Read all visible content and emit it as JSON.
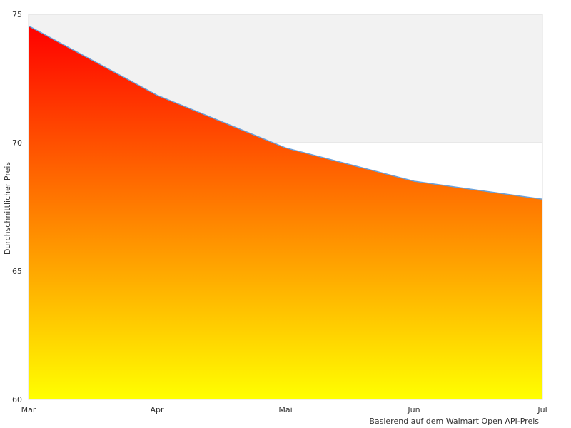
{
  "chart_data": {
    "type": "area",
    "categories": [
      "Mar",
      "Apr",
      "Mai",
      "Jun",
      "Jul"
    ],
    "series": [
      {
        "values": [
          74.55,
          71.85,
          69.8,
          68.5,
          67.8
        ]
      }
    ],
    "ylabel": "Durchschnittlicher Preis",
    "xlabel": "",
    "ylim": [
      60,
      75
    ],
    "yticks": [
      60,
      65,
      70,
      75
    ],
    "grid": true,
    "legend": "none",
    "colors": {
      "fill_top": "#ff0000",
      "fill_bottom": "#ffff00",
      "line": "#6aa0d8",
      "plot_border": "#dddddd",
      "band": "#f2f2f2"
    }
  },
  "note": "Basierend auf dem Walmart Open API-Preis"
}
